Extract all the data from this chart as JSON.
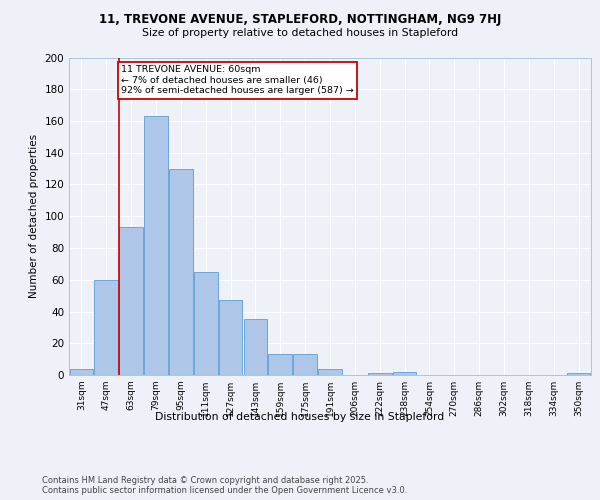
{
  "title1": "11, TREVONE AVENUE, STAPLEFORD, NOTTINGHAM, NG9 7HJ",
  "title2": "Size of property relative to detached houses in Stapleford",
  "xlabel": "Distribution of detached houses by size in Stapleford",
  "ylabel": "Number of detached properties",
  "categories": [
    "31sqm",
    "47sqm",
    "63sqm",
    "79sqm",
    "95sqm",
    "111sqm",
    "127sqm",
    "143sqm",
    "159sqm",
    "175sqm",
    "191sqm",
    "206sqm",
    "222sqm",
    "238sqm",
    "254sqm",
    "270sqm",
    "286sqm",
    "302sqm",
    "318sqm",
    "334sqm",
    "350sqm"
  ],
  "values": [
    4,
    60,
    93,
    163,
    130,
    65,
    47,
    35,
    13,
    13,
    4,
    0,
    1,
    2,
    0,
    0,
    0,
    0,
    0,
    0,
    1
  ],
  "bar_color": "#aec6e8",
  "bar_edge_color": "#5a9fd4",
  "vline_x": 1.5,
  "annotation_box_text": "11 TREVONE AVENUE: 60sqm\n← 7% of detached houses are smaller (46)\n92% of semi-detached houses are larger (587) →",
  "vline_color": "#cc0000",
  "box_edge_color": "#cc0000",
  "ylim": [
    0,
    200
  ],
  "yticks": [
    0,
    20,
    40,
    60,
    80,
    100,
    120,
    140,
    160,
    180,
    200
  ],
  "footer": "Contains HM Land Registry data © Crown copyright and database right 2025.\nContains public sector information licensed under the Open Government Licence v3.0.",
  "bg_color": "#eef2f8",
  "grid_color": "#ffffff"
}
